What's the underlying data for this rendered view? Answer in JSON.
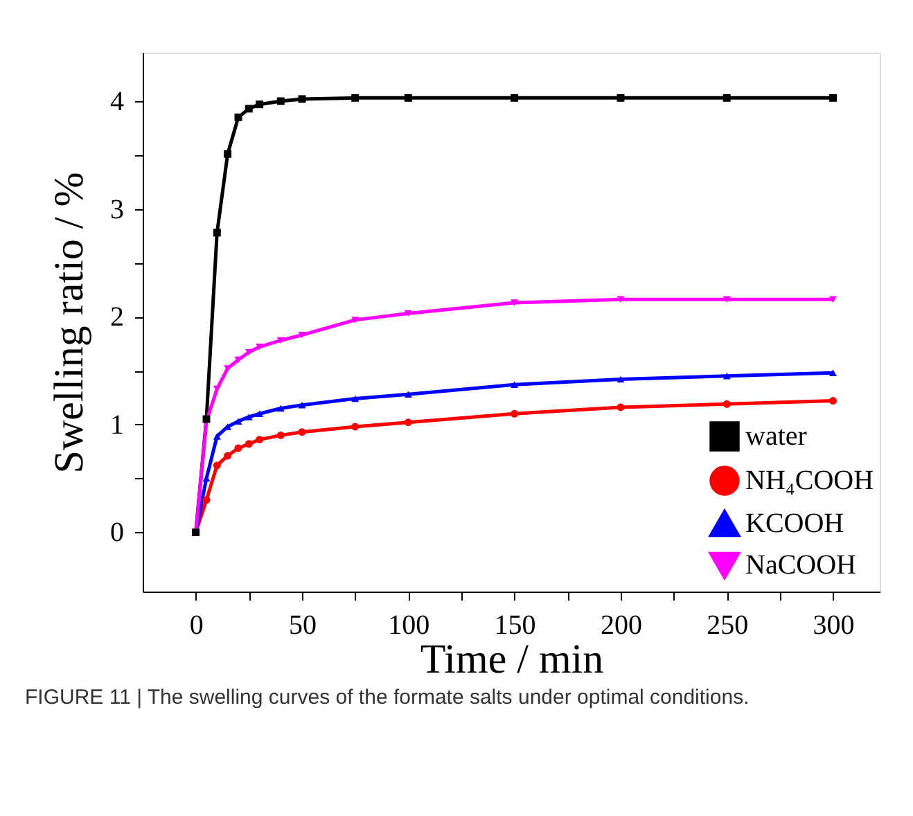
{
  "chart_data": {
    "type": "line",
    "xlabel": "Time / min",
    "ylabel": "Swelling ratio / %",
    "xlim": [
      -25,
      322
    ],
    "ylim": [
      -0.55,
      4.45
    ],
    "xticks": [
      0,
      {
        "value": 25,
        "label": null
      },
      50,
      {
        "value": 75,
        "label": null
      },
      100,
      {
        "value": 125,
        "label": null
      },
      150,
      {
        "value": 175,
        "label": null
      },
      200,
      {
        "value": 225,
        "label": null
      },
      250,
      {
        "value": 275,
        "label": null
      },
      300
    ],
    "yticks": [
      0,
      {
        "value": 0.5,
        "label": null
      },
      1,
      {
        "value": 1.5,
        "label": null
      },
      2,
      {
        "value": 2.5,
        "label": null
      },
      3,
      {
        "value": 3.5,
        "label": null
      },
      4
    ],
    "x": [
      0,
      5,
      10,
      15,
      20,
      25,
      30,
      40,
      50,
      75,
      100,
      150,
      200,
      250,
      300
    ],
    "series": [
      {
        "name": "water",
        "color": "#000000",
        "marker": "square",
        "values": [
          0,
          1.05,
          2.78,
          3.51,
          3.85,
          3.93,
          3.97,
          4.0,
          4.02,
          4.03,
          4.03,
          4.03,
          4.03,
          4.03,
          4.03
        ]
      },
      {
        "name": "NH₄COOH",
        "color": "#ff0000",
        "marker": "circle",
        "values": [
          0,
          0.3,
          0.62,
          0.71,
          0.78,
          0.82,
          0.86,
          0.9,
          0.93,
          0.98,
          1.02,
          1.1,
          1.16,
          1.19,
          1.22
        ]
      },
      {
        "name": "KCOOH",
        "color": "#0000ff",
        "marker": "triangle",
        "values": [
          0,
          0.5,
          0.89,
          0.98,
          1.03,
          1.07,
          1.1,
          1.15,
          1.18,
          1.24,
          1.28,
          1.37,
          1.42,
          1.45,
          1.48
        ]
      },
      {
        "name": "NaCOOH",
        "color": "#ff00ff",
        "marker": "triangle-down",
        "values": [
          0,
          1.03,
          1.33,
          1.52,
          1.6,
          1.67,
          1.72,
          1.78,
          1.83,
          1.97,
          2.03,
          2.13,
          2.16,
          2.16,
          2.16
        ]
      }
    ],
    "legend": "bottom right",
    "grid": false,
    "line_style": "solid",
    "annotations": [
      "FIGURE 11 | The swelling curves of the formate salts under optimal conditions."
    ]
  }
}
